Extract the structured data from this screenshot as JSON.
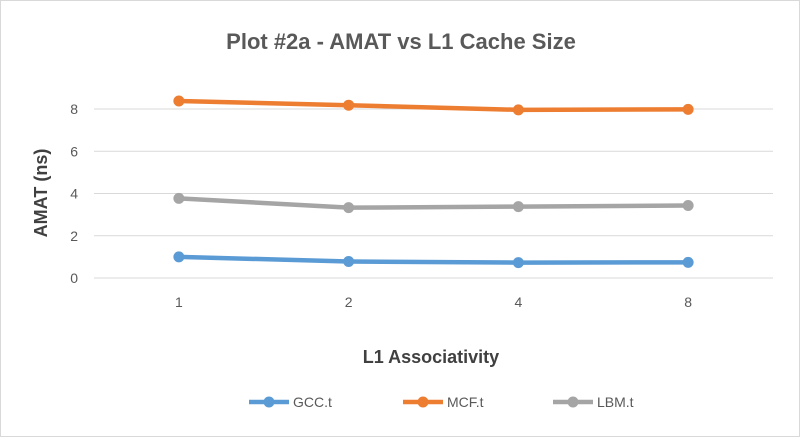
{
  "chart_data": {
    "type": "line",
    "title": "Plot #2a - AMAT vs L1 Cache Size",
    "xlabel": "L1 Associativity",
    "ylabel": "AMAT (ns)",
    "categories": [
      "1",
      "2",
      "4",
      "8"
    ],
    "ylim": [
      0,
      8
    ],
    "yticks": [
      0,
      2,
      4,
      6,
      8
    ],
    "grid": true,
    "legend_position": "bottom",
    "series": [
      {
        "name": "GCC.t",
        "color": "#5b9bd5",
        "values": [
          1.0,
          0.78,
          0.73,
          0.74
        ]
      },
      {
        "name": "MCF.t",
        "color": "#ed7d31",
        "values": [
          8.38,
          8.18,
          7.96,
          7.98
        ]
      },
      {
        "name": "LBM.t",
        "color": "#a5a5a5",
        "values": [
          3.77,
          3.33,
          3.38,
          3.43
        ]
      }
    ]
  }
}
